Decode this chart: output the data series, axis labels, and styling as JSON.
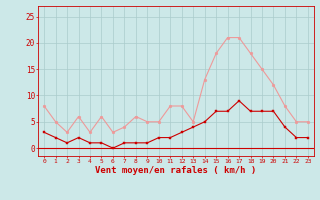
{
  "hours": [
    0,
    1,
    2,
    3,
    4,
    5,
    6,
    7,
    8,
    9,
    10,
    11,
    12,
    13,
    14,
    15,
    16,
    17,
    18,
    19,
    20,
    21,
    22,
    23
  ],
  "wind_avg": [
    3,
    2,
    1,
    2,
    1,
    1,
    0,
    1,
    1,
    1,
    2,
    2,
    3,
    4,
    5,
    7,
    7,
    9,
    7,
    7,
    7,
    4,
    2,
    2
  ],
  "wind_gust": [
    8,
    5,
    3,
    6,
    3,
    6,
    3,
    4,
    6,
    5,
    5,
    8,
    8,
    5,
    13,
    18,
    21,
    21,
    18,
    15,
    12,
    8,
    5,
    5
  ],
  "bg_color": "#cce8e8",
  "grid_color": "#aacccc",
  "line_avg_color": "#cc0000",
  "line_gust_color": "#ee9999",
  "xlabel": "Vent moyen/en rafales ( km/h )",
  "yticks": [
    0,
    5,
    10,
    15,
    20,
    25
  ],
  "ylim": [
    -1.5,
    27
  ],
  "xlim": [
    -0.5,
    23.5
  ]
}
